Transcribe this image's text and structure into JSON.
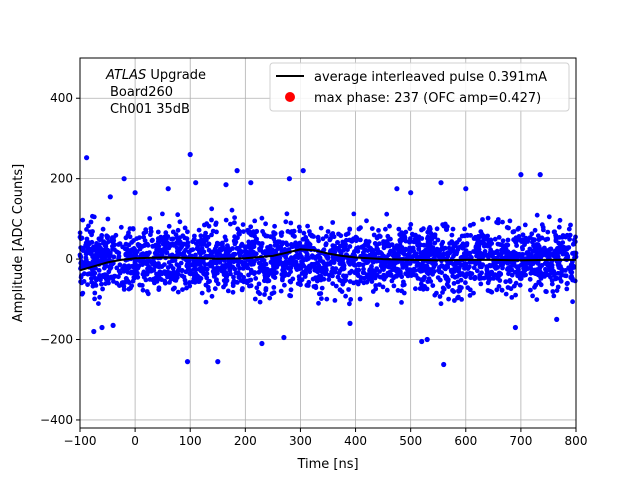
{
  "chart_data": {
    "type": "scatter",
    "xlabel": "Time [ns]",
    "ylabel": "Amplitude [ADC Counts]",
    "xlim": [
      -100,
      800
    ],
    "ylim": [
      -420,
      500
    ],
    "x_ticks": [
      -100,
      0,
      100,
      200,
      300,
      400,
      500,
      600,
      700,
      800
    ],
    "y_ticks": [
      -400,
      -200,
      0,
      200,
      400
    ],
    "grid": true,
    "legend_position": "top-right",
    "annotation": {
      "line1_italic": "ATLAS",
      "line1_rest": " Upgrade",
      "line2": "Board260",
      "line3": "Ch001 35dB"
    },
    "series": [
      {
        "name": "average interleaved pulse 0.391mA",
        "kind": "line",
        "color": "#000000",
        "x": [
          -100,
          -75,
          -50,
          -25,
          0,
          50,
          100,
          150,
          200,
          250,
          275,
          300,
          325,
          350,
          375,
          400,
          450,
          500,
          550,
          600,
          650,
          700,
          750,
          800
        ],
        "y": [
          -28,
          -18,
          -8,
          -2,
          2,
          4,
          3,
          1,
          2,
          8,
          16,
          24,
          22,
          14,
          8,
          4,
          0,
          -2,
          -3,
          -2,
          -2,
          -3,
          -2,
          -2
        ]
      },
      {
        "name": "max phase: 237 (OFC amp=0.427)",
        "kind": "marker",
        "color": "#ff0000"
      },
      {
        "name": "samples",
        "kind": "scatter",
        "color": "#0000ff",
        "band_y": [
          -90,
          90
        ],
        "outliers_x": [
          -88,
          -45,
          -20,
          0,
          60,
          100,
          110,
          165,
          185,
          210,
          280,
          305,
          475,
          500,
          555,
          600,
          700,
          735,
          -75,
          -60,
          -40,
          95,
          150,
          230,
          270,
          390,
          520,
          530,
          560,
          690,
          765
        ],
        "outliers_y": [
          252,
          155,
          200,
          165,
          175,
          260,
          190,
          185,
          220,
          190,
          200,
          220,
          175,
          165,
          190,
          175,
          210,
          210,
          -180,
          -170,
          -165,
          -255,
          -255,
          -210,
          -195,
          -160,
          -205,
          -200,
          -262,
          -170,
          -150
        ]
      }
    ]
  }
}
